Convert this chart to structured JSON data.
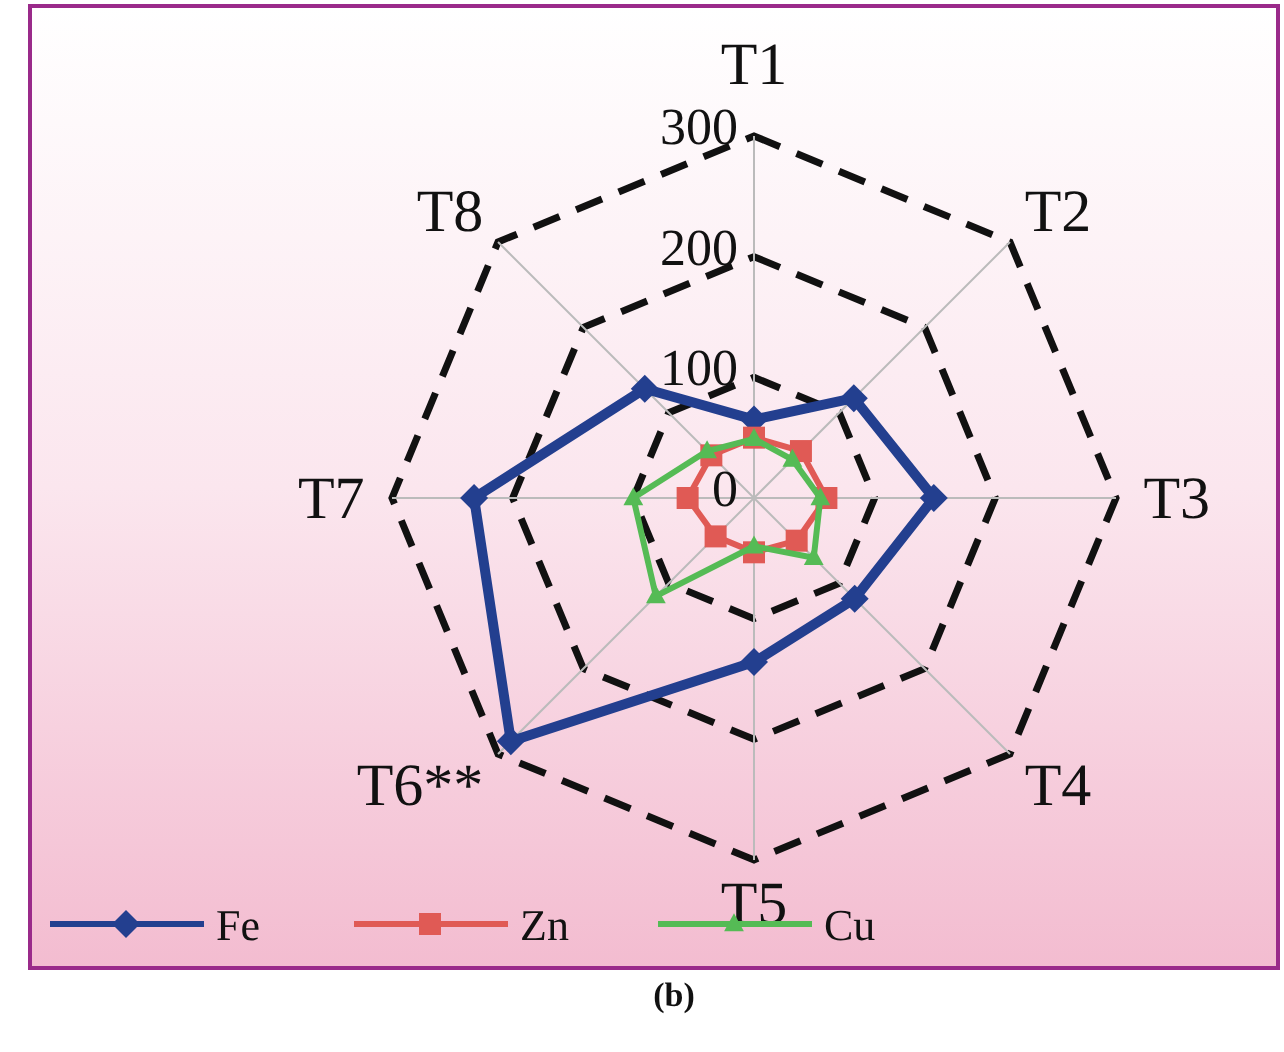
{
  "chart_data": {
    "type": "radar",
    "categories": [
      "T1",
      "T2",
      "T3",
      "T4",
      "T5",
      "T6**",
      "T7",
      "T8"
    ],
    "series": [
      {
        "name": "Fe",
        "color": "#233f8f",
        "values": [
          65,
          117,
          149,
          118,
          136,
          285,
          232,
          128
        ],
        "marker": "diamond"
      },
      {
        "name": "Zn",
        "color": "#e05a55",
        "values": [
          50,
          55,
          60,
          50,
          45,
          45,
          55,
          50
        ],
        "marker": "square"
      },
      {
        "name": "Cu",
        "color": "#55bb55",
        "values": [
          49,
          45,
          55,
          70,
          40,
          115,
          100,
          55
        ],
        "marker": "triangle"
      }
    ],
    "ylim": [
      0,
      300
    ],
    "yticks": [
      0,
      100,
      200,
      300
    ],
    "grid": true,
    "line_style": "solid",
    "legend": "bottom left",
    "annotations": [
      "(b)"
    ]
  }
}
